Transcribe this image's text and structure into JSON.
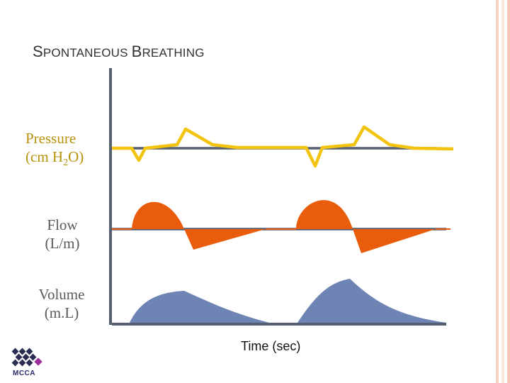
{
  "slide": {
    "title_parts": [
      {
        "text": "S",
        "style": "cap"
      },
      {
        "text": "PONTANEOUS ",
        "style": "sc"
      },
      {
        "text": "B",
        "style": "cap"
      },
      {
        "text": "REATHING",
        "style": "sc"
      }
    ],
    "accent_colors": [
      "#f5c6b5",
      "#fbe3d8"
    ]
  },
  "labels": {
    "pressure_line1": "Pressure",
    "pressure_line2_pre": "(cm H",
    "pressure_sub": "2",
    "pressure_line2_post": "O)",
    "flow_line1": "Flow",
    "flow_line2": "(L/m)",
    "volume_line1": "Volume",
    "volume_line2": "(m.L)",
    "time_axis": "Time (sec)"
  },
  "waveforms": {
    "pressure_color": "#f2c40f",
    "flow_color": "#e85c0c",
    "volume_color": "#6e84b4",
    "axis_color": "#555f70"
  },
  "logo": {
    "text": "MCCA",
    "icon": "mcca-logo-icon"
  }
}
